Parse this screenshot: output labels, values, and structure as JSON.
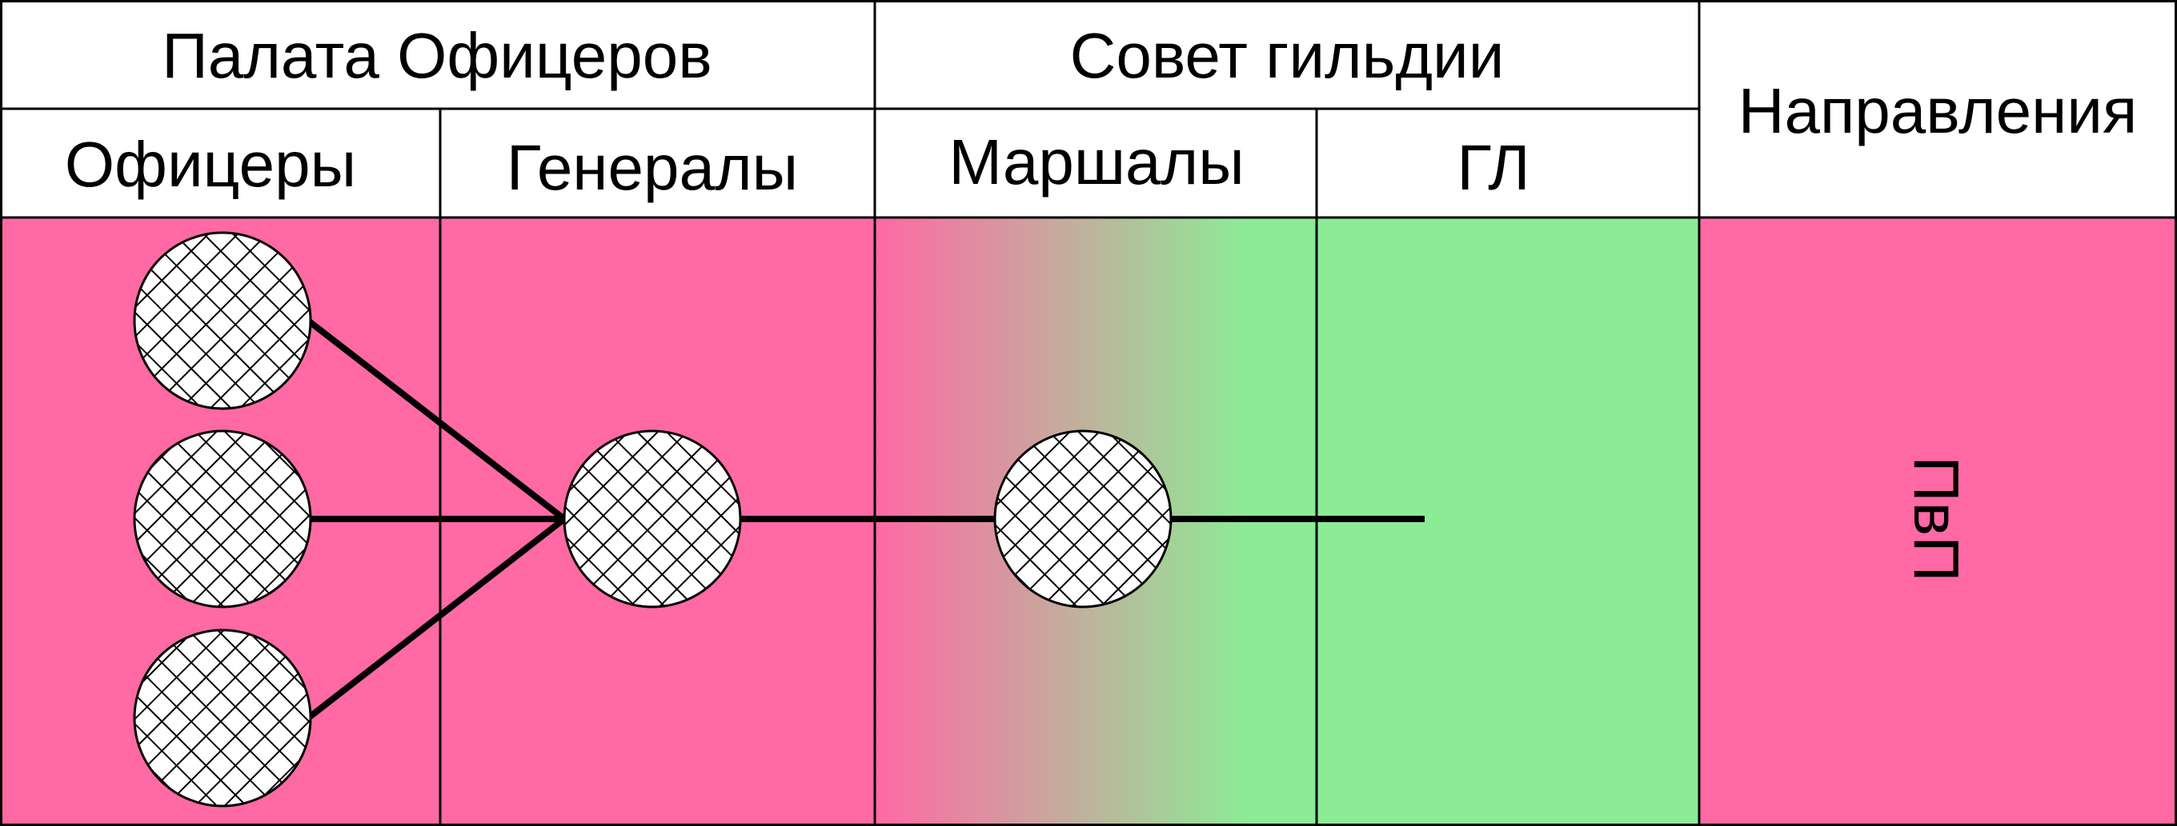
{
  "headers": {
    "group_officers_chamber": "Палата Офицеров",
    "group_guild_council": "Совет гильдии",
    "directions": "Направления"
  },
  "subheaders": {
    "officers": "Офицеры",
    "generals": "Генералы",
    "marshals": "Маршалы",
    "gl": "ГЛ"
  },
  "direction_label": "ПвП",
  "colors": {
    "pink": "#ff69a4",
    "green": "#8cec96",
    "node_fill": "#ffffff",
    "line": "#000000"
  }
}
